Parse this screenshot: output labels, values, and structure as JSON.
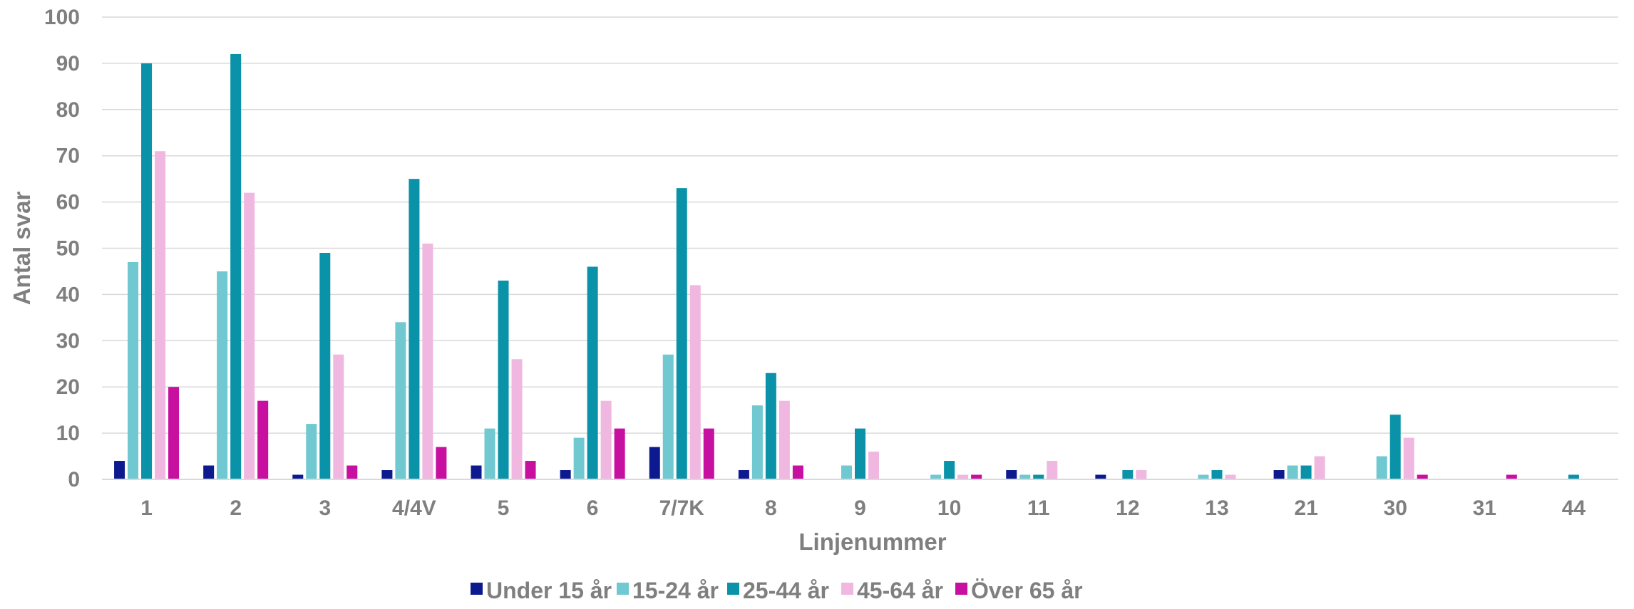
{
  "chart_data": {
    "type": "bar",
    "title": "",
    "xlabel": "Linjenummer",
    "ylabel": "Antal svar",
    "ylim": [
      0,
      100
    ],
    "yticks": [
      0,
      10,
      20,
      30,
      40,
      50,
      60,
      70,
      80,
      90,
      100
    ],
    "grid": true,
    "legend_position": "bottom",
    "categories": [
      "1",
      "2",
      "3",
      "4/4V",
      "5",
      "6",
      "7/7K",
      "8",
      "9",
      "10",
      "11",
      "12",
      "13",
      "21",
      "30",
      "31",
      "44"
    ],
    "series": [
      {
        "name": "Under 15 år",
        "color": "#0d1a8f",
        "values": [
          4,
          3,
          1,
          2,
          3,
          2,
          7,
          2,
          0,
          0,
          2,
          1,
          0,
          2,
          0,
          0,
          0
        ]
      },
      {
        "name": "15-24 år",
        "color": "#70c8d0",
        "values": [
          47,
          45,
          12,
          34,
          11,
          9,
          27,
          16,
          3,
          1,
          1,
          0,
          1,
          3,
          5,
          0,
          0
        ]
      },
      {
        "name": "25-44 år",
        "color": "#0a93a8",
        "values": [
          90,
          92,
          49,
          65,
          43,
          46,
          63,
          23,
          11,
          4,
          1,
          2,
          2,
          3,
          14,
          0,
          1
        ]
      },
      {
        "name": "45-64 år",
        "color": "#f0b8e0",
        "values": [
          71,
          62,
          27,
          51,
          26,
          17,
          42,
          17,
          6,
          1,
          4,
          2,
          1,
          5,
          9,
          0,
          0
        ]
      },
      {
        "name": "Över 65 år",
        "color": "#c70fa0",
        "values": [
          20,
          17,
          3,
          7,
          4,
          11,
          11,
          3,
          0,
          1,
          0,
          0,
          0,
          0,
          1,
          1,
          0
        ]
      }
    ]
  }
}
